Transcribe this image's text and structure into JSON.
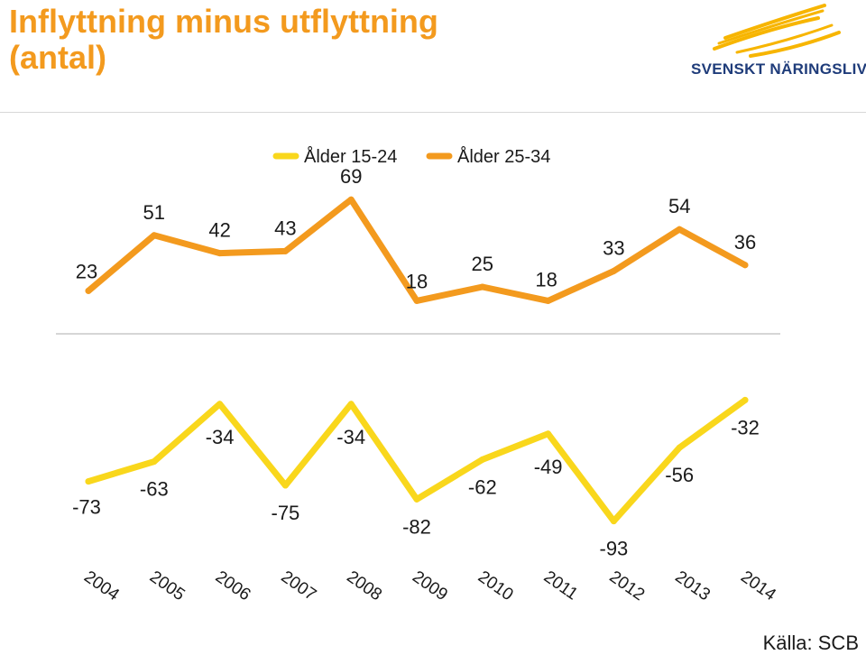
{
  "header": {
    "title_line1": "Inflyttning minus utflyttning",
    "title_line2": "(antal)"
  },
  "logo": {
    "text": "SVENSKT NÄRINGSLIV",
    "text_color": "#1F3C7A",
    "flame_color": "#F7B500"
  },
  "source": "Källa: SCB",
  "chart_data": {
    "type": "line",
    "categories": [
      "2004",
      "2005",
      "2006",
      "2007",
      "2008",
      "2009",
      "2010",
      "2011",
      "2012",
      "2013",
      "2014"
    ],
    "series": [
      {
        "name": "Ålder 15-24",
        "color": "#F9D71C",
        "values": [
          -73,
          -63,
          -34,
          -75,
          -34,
          -82,
          -62,
          -49,
          -93,
          -56,
          -32
        ]
      },
      {
        "name": "Ålder 25-34",
        "color": "#F39A1E",
        "values": [
          23,
          51,
          42,
          43,
          69,
          18,
          25,
          18,
          33,
          54,
          36
        ]
      }
    ],
    "legend_position": "top",
    "grid": false,
    "axis_line_color": "#c8c8c8"
  }
}
